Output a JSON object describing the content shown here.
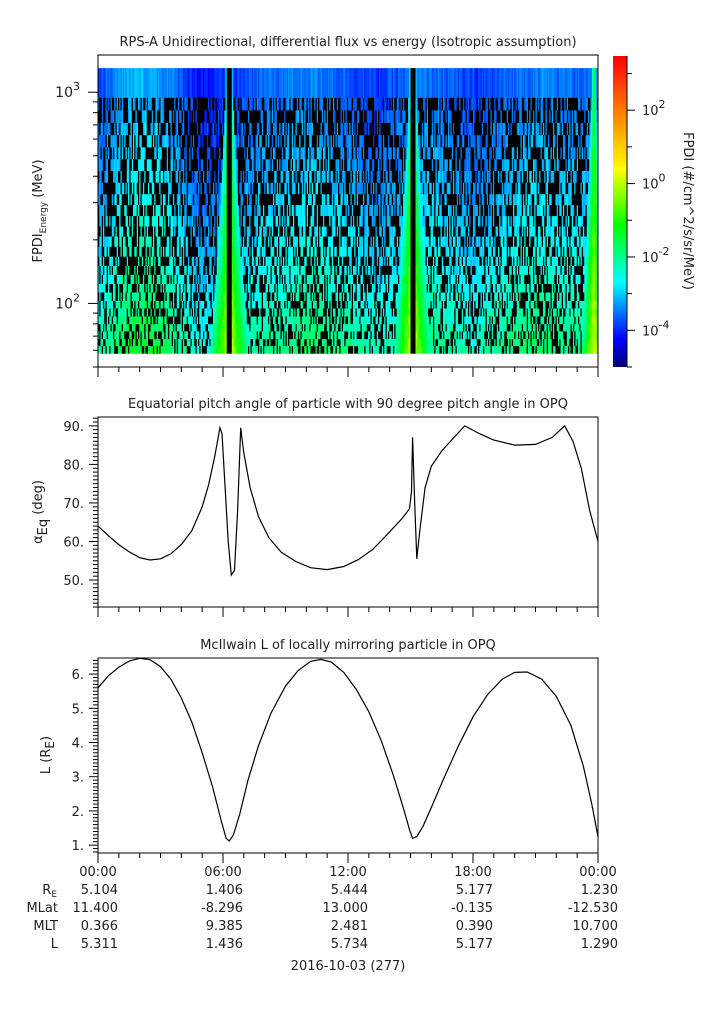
{
  "chart_data": [
    {
      "type": "heatmap",
      "title": "RPS-A Unidirectional, differential flux vs energy (Isotropic assumption)",
      "ylabel_main": "FPDI",
      "ylabel_sub": "Energy",
      "ylabel_unit": " (MeV)",
      "yscale": "log",
      "ylim": [
        50,
        1500
      ],
      "yticks": [
        {
          "value": 1000,
          "base": "10",
          "exp": "3"
        },
        {
          "value": 100,
          "base": "10",
          "exp": "2"
        }
      ],
      "xlim_hours": [
        0,
        24
      ],
      "energy_bands_mev": [
        58,
        63,
        68,
        74,
        80,
        87,
        95,
        103,
        113,
        124,
        137,
        151,
        167,
        186,
        208,
        232,
        260,
        293,
        330,
        374,
        425,
        483,
        550,
        628,
        718,
        823,
        944,
        1300
      ],
      "bright_bands_hours": [
        {
          "center": 6.3,
          "halfwidth": 0.9,
          "gap": 0.13
        },
        {
          "center": 15.1,
          "halfwidth": 0.9,
          "gap": 0.12
        },
        {
          "center": 23.8,
          "halfwidth": 0.6,
          "gap": 0.0
        }
      ],
      "colorbar": {
        "label": "FPDI (#/cm^2/s/sr/MeV)",
        "scale": "log",
        "range": [
          1e-05,
          3000
        ],
        "ticks": [
          {
            "value": 100,
            "base": "10",
            "exp": "2"
          },
          {
            "value": 1,
            "base": "10",
            "exp": "0"
          },
          {
            "value": 0.01,
            "base": "10",
            "exp": "-2"
          },
          {
            "value": 0.0001,
            "base": "10",
            "exp": "-4"
          }
        ],
        "colors": [
          "#00007f",
          "#0000ff",
          "#007fff",
          "#00ffff",
          "#00ff7f",
          "#00ff00",
          "#7fff00",
          "#ffff00",
          "#ffbf00",
          "#ff7f00",
          "#ff3f00",
          "#ff0000"
        ]
      }
    },
    {
      "type": "line",
      "title": "Equatorial pitch angle of particle with 90 degree pitch angle in OPQ",
      "ylabel_main": "α",
      "ylabel_sub": "Eq",
      "ylabel_unit": " (deg)",
      "ylim": [
        43,
        92.3
      ],
      "xlim_hours": [
        0,
        24
      ],
      "yticks": [
        {
          "value": 50,
          "label": "50."
        },
        {
          "value": 60,
          "label": "60."
        },
        {
          "value": 70,
          "label": "70."
        },
        {
          "value": 80,
          "label": "80."
        },
        {
          "value": 90,
          "label": "90."
        }
      ],
      "series": [
        {
          "name": "alpha_eq",
          "x": [
            0,
            0.5,
            1,
            1.5,
            2,
            2.5,
            3,
            3.5,
            4,
            4.5,
            5,
            5.3,
            5.6,
            5.85,
            5.95,
            6.1,
            6.25,
            6.4,
            6.55,
            6.7,
            6.85,
            7.0,
            7.3,
            7.7,
            8.2,
            8.8,
            9.5,
            10.2,
            11,
            11.8,
            12.5,
            13.2,
            14,
            14.6,
            14.95,
            15.05,
            15.1,
            15.2,
            15.3,
            15.45,
            15.7,
            16,
            16.5,
            17.0,
            17.6,
            18.3,
            19,
            20,
            21,
            21.8,
            22.4,
            22.8,
            23.2,
            23.6,
            24
          ],
          "y": [
            64,
            61.5,
            59.2,
            57.3,
            55.8,
            55.2,
            55.5,
            56.8,
            59.2,
            62.8,
            69,
            74.5,
            82,
            89.5,
            88,
            74,
            60,
            51.3,
            52.5,
            68,
            89.5,
            83,
            74,
            66.5,
            61,
            57.2,
            54.8,
            53.2,
            52.7,
            53.5,
            55.3,
            58,
            62.5,
            66,
            68.5,
            73,
            87,
            70,
            55.5,
            63,
            74,
            79.5,
            83.5,
            86.5,
            90,
            88,
            86.3,
            85,
            85.2,
            87,
            90,
            86,
            79,
            68,
            60
          ]
        }
      ]
    },
    {
      "type": "line",
      "title": "McIlwain L of locally mirroring particle in OPQ",
      "ylabel_main": "L (R",
      "ylabel_sub": "E",
      "ylabel_unit": ")",
      "ylim": [
        0.77,
        6.47
      ],
      "xlim_hours": [
        0,
        24
      ],
      "yticks": [
        {
          "value": 1,
          "label": "1."
        },
        {
          "value": 2,
          "label": "2."
        },
        {
          "value": 3,
          "label": "3."
        },
        {
          "value": 4,
          "label": "4."
        },
        {
          "value": 5,
          "label": "5."
        },
        {
          "value": 6,
          "label": "6."
        }
      ],
      "series": [
        {
          "name": "L",
          "x": [
            0,
            0.5,
            1,
            1.5,
            2,
            2.5,
            3,
            3.5,
            4,
            4.5,
            5,
            5.5,
            5.9,
            6.15,
            6.3,
            6.5,
            6.8,
            7.2,
            7.7,
            8.3,
            9,
            9.6,
            10.2,
            10.7,
            11.2,
            11.8,
            12.4,
            13,
            13.6,
            14.2,
            14.7,
            14.95,
            15.1,
            15.3,
            15.6,
            16,
            16.6,
            17.3,
            18,
            18.7,
            19.4,
            20,
            20.6,
            21.3,
            22,
            22.7,
            23.3,
            23.7,
            24
          ],
          "y": [
            5.6,
            5.95,
            6.2,
            6.38,
            6.46,
            6.42,
            6.22,
            5.85,
            5.3,
            4.6,
            3.7,
            2.7,
            1.75,
            1.2,
            1.12,
            1.3,
            1.9,
            2.9,
            3.9,
            4.85,
            5.65,
            6.1,
            6.37,
            6.43,
            6.35,
            6.05,
            5.55,
            4.9,
            4.05,
            3.0,
            2.0,
            1.45,
            1.2,
            1.25,
            1.55,
            2.1,
            2.95,
            3.9,
            4.75,
            5.4,
            5.85,
            6.05,
            6.06,
            5.85,
            5.35,
            4.5,
            3.3,
            2.2,
            1.25
          ]
        }
      ]
    }
  ],
  "x_axis": {
    "tick_labels": [
      "00:00",
      "06:00",
      "12:00",
      "18:00",
      "00:00"
    ],
    "tick_hours": [
      0,
      6,
      12,
      18,
      24
    ],
    "minor_step_hours": 1,
    "date_label": "2016-10-03 (277)"
  },
  "ephemeris": {
    "rows": [
      {
        "label_main": "R",
        "label_sub": "E",
        "values": [
          "5.104",
          "1.406",
          "5.444",
          "5.177",
          "1.230"
        ]
      },
      {
        "label_main": "MLat",
        "label_sub": "",
        "values": [
          "11.400",
          "-8.296",
          "13.000",
          "-0.135",
          "-12.530"
        ]
      },
      {
        "label_main": "MLT",
        "label_sub": "",
        "values": [
          "0.366",
          "9.385",
          "2.481",
          "0.390",
          "10.700"
        ]
      },
      {
        "label_main": "L",
        "label_sub": "",
        "values": [
          "5.311",
          "1.436",
          "5.734",
          "5.177",
          "1.290"
        ]
      }
    ]
  }
}
